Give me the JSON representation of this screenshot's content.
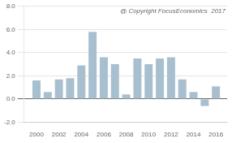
{
  "chart_data": {
    "type": "bar",
    "x": [
      2000,
      2001,
      2002,
      2003,
      2004,
      2005,
      2006,
      2007,
      2008,
      2009,
      2010,
      2011,
      2012,
      2013,
      2014,
      2015,
      2016
    ],
    "values": [
      1.6,
      0.6,
      1.7,
      1.8,
      2.9,
      5.8,
      3.6,
      3.0,
      0.4,
      3.5,
      3.0,
      3.5,
      3.6,
      1.7,
      0.6,
      -0.6,
      1.1
    ],
    "color": "#a8bfcf",
    "xlim": [
      1998.9,
      2017.0
    ],
    "xticks": [
      2000,
      2002,
      2004,
      2006,
      2008,
      2010,
      2012,
      2014,
      2016
    ],
    "ylim": [
      -2.0,
      8.0
    ],
    "yticks": [
      {
        "value": -2.0,
        "label": "-2.0"
      },
      {
        "value": 0.0,
        "label": "0.0"
      },
      {
        "value": 2.0,
        "label": "2.0"
      },
      {
        "value": 4.0,
        "label": "4.0"
      },
      {
        "value": 6.0,
        "label": "6.0"
      },
      {
        "value": 8.0,
        "label": "8.0"
      }
    ],
    "grid": true,
    "annotations": [
      "@ Copyright FocusEconomics  2017"
    ]
  }
}
